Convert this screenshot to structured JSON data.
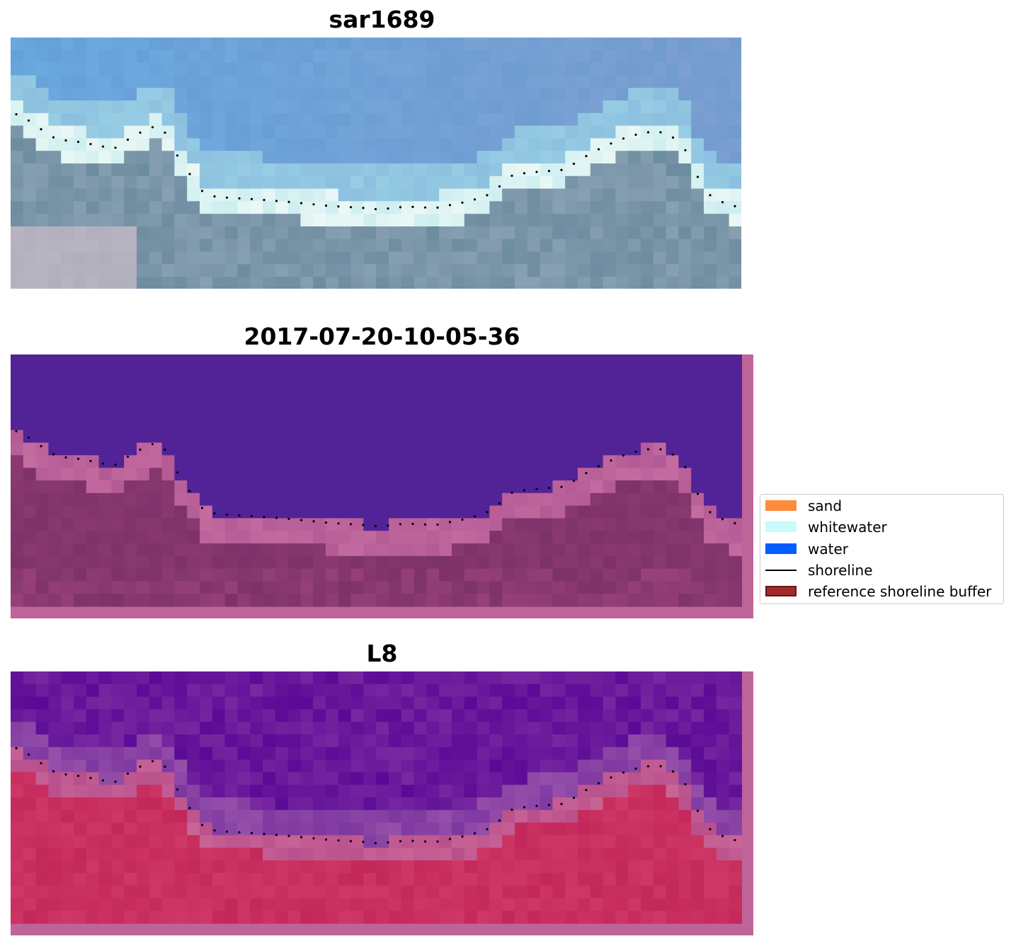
{
  "panels": [
    {
      "title": "sar1689",
      "kind": "rgb"
    },
    {
      "title": "2017-07-20-10-05-36",
      "kind": "classified"
    },
    {
      "title": "L8",
      "kind": "index"
    }
  ],
  "legend": {
    "items": [
      {
        "label": "sand",
        "color": "#ff8c3a",
        "type": "patch"
      },
      {
        "label": "whitewater",
        "color": "#c8fcfc",
        "type": "patch"
      },
      {
        "label": "water",
        "color": "#005dff",
        "type": "patch"
      },
      {
        "label": "shoreline",
        "color": "#000000",
        "type": "line"
      },
      {
        "label": "reference shoreline buffer",
        "color": "#a02c2c",
        "edge": "#6a1515",
        "type": "patch"
      }
    ]
  }
}
